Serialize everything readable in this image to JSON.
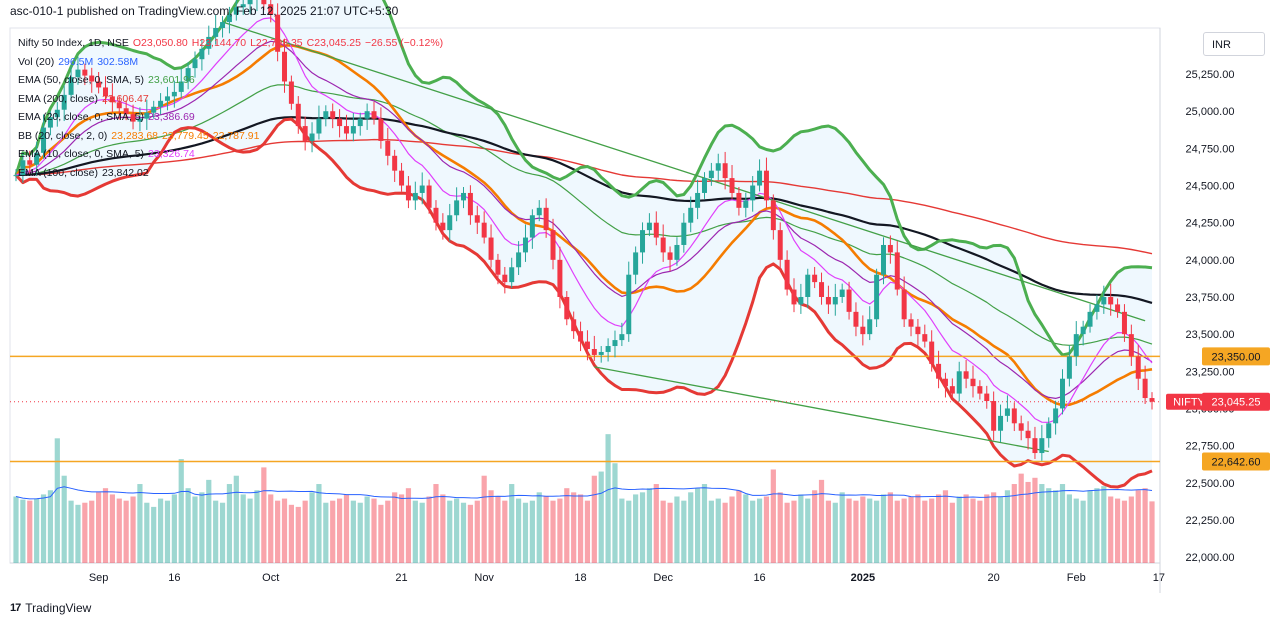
{
  "header": {
    "published": "asc-010-1 published on TradingView.com, Feb 12, 2025 21:07 UTC+5:30"
  },
  "legend": [
    {
      "label": "Nifty 50 Index, 1D, NSE",
      "values": [
        "O23,050.80",
        "H23,144.70",
        "L22,798.35",
        "C23,045.25",
        "−26.55 (−0.12%)"
      ],
      "color": "#f23645"
    },
    {
      "label": "Vol (20)",
      "values": [
        "296.5M",
        "302.58M"
      ],
      "color": "#2962ff"
    },
    {
      "label": "EMA (50, close, 0, SMA, 5)",
      "values": [
        "23,601.96"
      ],
      "color": "#43a047"
    },
    {
      "label": "EMA (200, close)",
      "values": [
        "23,606.47"
      ],
      "color": "#e53935"
    },
    {
      "label": "EMA (20, close, 0, SMA, 5)",
      "values": [
        "23,386.69"
      ],
      "color": "#9c27b0"
    },
    {
      "label": "BB (20, close, 2, 0)",
      "values": [
        "23,283.68",
        "23,779.45",
        "22,787.91"
      ],
      "color": "#f57c00"
    },
    {
      "label": "EMA (10, close, 0, SMA, 5)",
      "values": [
        "23,326.74"
      ],
      "color": "#e040fb"
    },
    {
      "label": "EMA (100, close)",
      "values": [
        "23,842.02"
      ],
      "color": "#131722"
    }
  ],
  "currency_button": "INR",
  "price_tags": [
    {
      "label": "",
      "value": "23,350.00",
      "bg": "#f5a623",
      "fg": "#131722",
      "price": 23350
    },
    {
      "label": "NIFTY",
      "value": "23,045.25",
      "bg": "#f23645",
      "fg": "#ffffff",
      "price": 23045.25
    },
    {
      "label": "",
      "value": "22,642.60",
      "bg": "#f5a623",
      "fg": "#131722",
      "price": 22642.6
    }
  ],
  "brand": {
    "name": "TradingView",
    "logo_text": "17"
  },
  "chart_data": {
    "type": "candlestick",
    "symbol": "NIFTY",
    "y_ticks": [
      22000,
      22250,
      22500,
      22750,
      23000,
      23250,
      23500,
      23750,
      24000,
      24250,
      24500,
      24750,
      25000,
      25250
    ],
    "y_tick_labels": [
      "22,000.00",
      "22,250.00",
      "22,500.00",
      "22,750.00",
      "23,000.00",
      "23,250.00",
      "23,500.00",
      "23,750.00",
      "24,000.00",
      "24,250.00",
      "24,500.00",
      "24,750.00",
      "25,000.00",
      "25,250.00"
    ],
    "ylim": [
      21960,
      25560
    ],
    "x_labels": [
      {
        "label": "Sep",
        "index": 12
      },
      {
        "label": "16",
        "index": 23
      },
      {
        "label": "Oct",
        "index": 37
      },
      {
        "label": "21",
        "index": 56
      },
      {
        "label": "Nov",
        "index": 68
      },
      {
        "label": "18",
        "index": 82
      },
      {
        "label": "Dec",
        "index": 94
      },
      {
        "label": "16",
        "index": 108
      },
      {
        "label": "2025",
        "index": 123
      },
      {
        "label": "20",
        "index": 142
      },
      {
        "label": "Feb",
        "index": 154
      },
      {
        "label": "17",
        "index": 166
      }
    ],
    "horizontal_levels": [
      23350,
      22642.6
    ],
    "last_price": 23045.25,
    "closes": [
      24570,
      24670,
      24640,
      24720,
      24890,
      24960,
      25010,
      25110,
      25230,
      25280,
      25240,
      25200,
      25160,
      25100,
      25060,
      25020,
      24980,
      24930,
      24950,
      24990,
      25030,
      25070,
      25100,
      25130,
      25200,
      25290,
      25350,
      25420,
      25500,
      25560,
      25600,
      25650,
      25700,
      25720,
      25750,
      25800,
      25720,
      25650,
      25400,
      25200,
      25050,
      24900,
      24800,
      24850,
      24950,
      25000,
      24950,
      24900,
      24850,
      24900,
      24950,
      25000,
      24950,
      24800,
      24700,
      24600,
      24500,
      24400,
      24450,
      24500,
      24350,
      24250,
      24200,
      24300,
      24400,
      24450,
      24300,
      24250,
      24150,
      24000,
      23900,
      23850,
      23950,
      24050,
      24150,
      24300,
      24350,
      24200,
      24000,
      23750,
      23600,
      23520,
      23450,
      23400,
      23360,
      23380,
      23420,
      23460,
      23500,
      23900,
      24050,
      24200,
      24250,
      24150,
      24050,
      24000,
      24100,
      24250,
      24350,
      24450,
      24550,
      24600,
      24650,
      24550,
      24450,
      24350,
      24400,
      24500,
      24600,
      24400,
      24200,
      24000,
      23800,
      23700,
      23750,
      23900,
      23850,
      23750,
      23700,
      23750,
      23800,
      23650,
      23550,
      23500,
      23600,
      23900,
      24100,
      24050,
      23800,
      23600,
      23550,
      23500,
      23450,
      23300,
      23200,
      23150,
      23100,
      23250,
      23200,
      23150,
      23100,
      23050,
      22850,
      22950,
      23000,
      22900,
      22850,
      22800,
      22700,
      22800,
      22900,
      23000,
      23200,
      23350,
      23500,
      23550,
      23650,
      23700,
      23750,
      23700,
      23650,
      23500,
      23350,
      23200,
      23070,
      23045.25
    ],
    "ohlc_last": {
      "open": 23050.8,
      "high": 23144.7,
      "low": 22798.35,
      "close": 23045.25,
      "change": -26.55,
      "change_pct": -0.12
    },
    "vol_ma": 302.58,
    "volumes_m": [
      320,
      305,
      300,
      310,
      330,
      350,
      600,
      420,
      300,
      280,
      290,
      300,
      340,
      360,
      330,
      310,
      300,
      320,
      380,
      290,
      270,
      310,
      300,
      330,
      500,
      360,
      320,
      340,
      400,
      300,
      290,
      380,
      420,
      330,
      310,
      350,
      460,
      330,
      300,
      310,
      280,
      270,
      300,
      340,
      380,
      290,
      300,
      310,
      330,
      300,
      290,
      320,
      310,
      280,
      300,
      340,
      330,
      360,
      300,
      290,
      320,
      380,
      330,
      300,
      310,
      290,
      280,
      300,
      420,
      350,
      320,
      300,
      380,
      310,
      290,
      300,
      340,
      320,
      300,
      310,
      360,
      340,
      330,
      300,
      420,
      440,
      620,
      480,
      310,
      300,
      330,
      340,
      360,
      380,
      300,
      290,
      320,
      300,
      340,
      360,
      380,
      300,
      310,
      290,
      320,
      350,
      330,
      300,
      310,
      320,
      450,
      340,
      290,
      300,
      330,
      310,
      350,
      400,
      300,
      290,
      340,
      310,
      300,
      320,
      310,
      300,
      330,
      340,
      300,
      310,
      320,
      330,
      300,
      310,
      330,
      350,
      290,
      320,
      330,
      310,
      300,
      330,
      340,
      320,
      350,
      380,
      430,
      390,
      410,
      380,
      360,
      350,
      380,
      330,
      310,
      300,
      350,
      360,
      370,
      320,
      310,
      300,
      320,
      350,
      360,
      296.5
    ]
  }
}
